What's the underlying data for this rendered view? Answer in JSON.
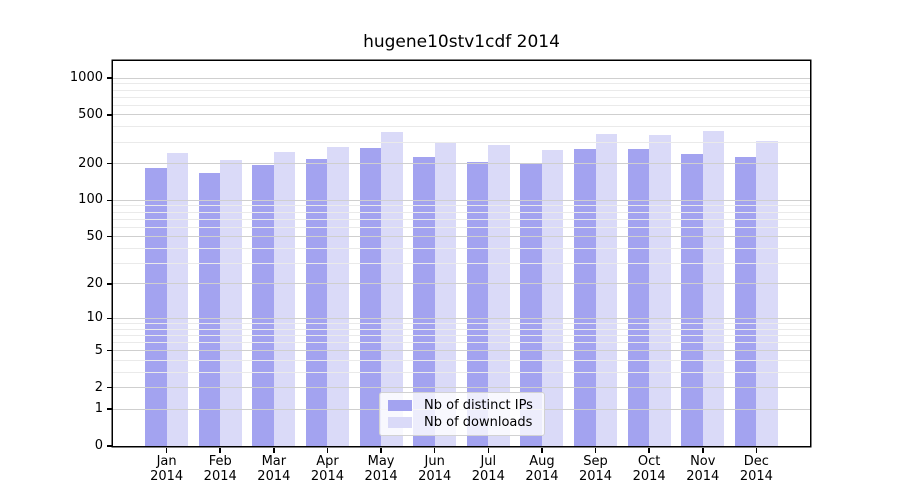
{
  "chart_data": {
    "type": "bar",
    "title": "hugene10stv1cdf 2014",
    "categories": [
      "Jan",
      "Feb",
      "Mar",
      "Apr",
      "May",
      "Jun",
      "Jul",
      "Aug",
      "Sep",
      "Oct",
      "Nov",
      "Dec"
    ],
    "category_year": "2014",
    "series": [
      {
        "name": "Nb of distinct IPs",
        "color": "#a3a3f0",
        "values": [
          183,
          168,
          196,
          218,
          270,
          228,
          205,
          200,
          266,
          265,
          240,
          228
        ]
      },
      {
        "name": "Nb of downloads",
        "color": "#dadaf8",
        "values": [
          244,
          214,
          250,
          272,
          360,
          295,
          286,
          258,
          349,
          343,
          368,
          308
        ]
      }
    ],
    "y_axis": {
      "scale": "log1p",
      "ticks": [
        0,
        1,
        2,
        5,
        10,
        20,
        50,
        100,
        200,
        500,
        1000
      ],
      "minor_gridlines": [
        3,
        4,
        6,
        7,
        8,
        9,
        30,
        40,
        60,
        70,
        80,
        90,
        300,
        400,
        600,
        700,
        800,
        900
      ],
      "max": 1380
    },
    "legend": {
      "position": "lower center",
      "entries": [
        "Nb of distinct IPs",
        "Nb of downloads"
      ]
    },
    "grid": true
  },
  "colors": {
    "grid_minor": "#eaeaea",
    "grid_major": "#cfcfcf",
    "spine": "#000000"
  }
}
